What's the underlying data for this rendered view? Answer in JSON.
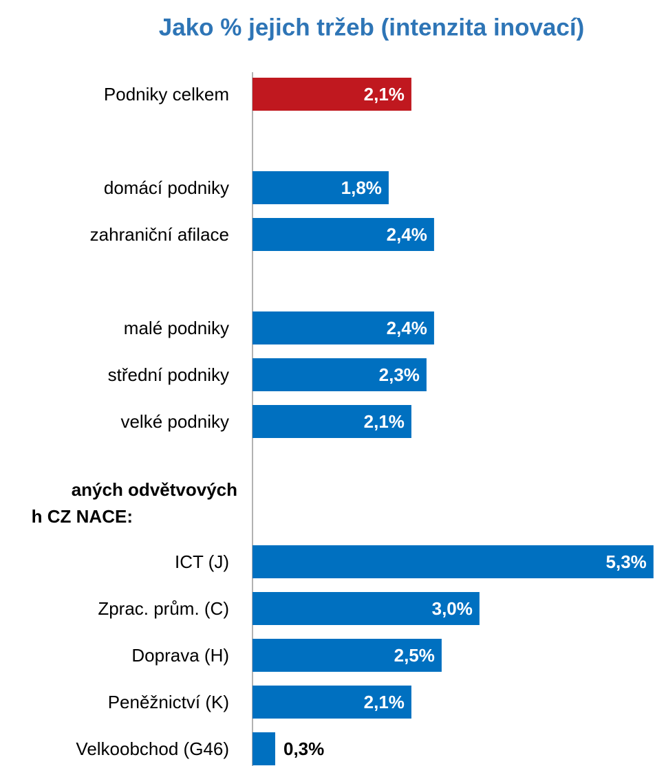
{
  "chart_data": {
    "type": "hbar",
    "title": "Jako % jejich tržeb (intenzita inovací)",
    "annotations": [
      "aných odvětvových",
      "h CZ NACE:"
    ],
    "categories": [
      "Podniky celkem",
      null,
      "domácí podniky",
      "zahraniční afilace",
      null,
      "malé podniky ",
      "střední podniky",
      "velké podniky",
      null,
      null,
      "ICT (J)",
      "Zprac. prům. (C)",
      "Doprava (H)",
      "Peněžnictví (K)",
      "Velkoobchod (G46)"
    ],
    "values": [
      2.1,
      null,
      1.8,
      2.4,
      null,
      2.4,
      2.3,
      2.1,
      null,
      null,
      5.3,
      3.0,
      2.5,
      2.1,
      0.3
    ],
    "value_labels": [
      "2,1%",
      null,
      "1,8%",
      "2,4%",
      null,
      "2,4%",
      "2,3%",
      "2,1%",
      null,
      null,
      "5,3%",
      "3,0%",
      "2,5%",
      "2,1%",
      "0,3%"
    ],
    "colors": [
      "#c0181f",
      null,
      "#0070c0",
      "#0070c0",
      null,
      "#0070c0",
      "#0070c0",
      "#0070c0",
      null,
      null,
      "#0070c0",
      "#0070c0",
      "#0070c0",
      "#0070c0",
      "#0070c0"
    ],
    "xlim": [
      0,
      5.32
    ]
  }
}
